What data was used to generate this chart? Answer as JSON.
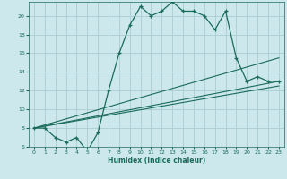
{
  "xlabel": "Humidex (Indice chaleur)",
  "bg_color": "#cce8ec",
  "grid_color": "#aaccd4",
  "line_color": "#1a6b5a",
  "xlim": [
    -0.5,
    23.5
  ],
  "ylim": [
    6,
    21.5
  ],
  "yticks": [
    6,
    8,
    10,
    12,
    14,
    16,
    18,
    20
  ],
  "xticks": [
    0,
    1,
    2,
    3,
    4,
    5,
    6,
    7,
    8,
    9,
    10,
    11,
    12,
    13,
    14,
    15,
    16,
    17,
    18,
    19,
    20,
    21,
    22,
    23
  ],
  "main_x": [
    0,
    1,
    2,
    3,
    4,
    5,
    6,
    7,
    8,
    9,
    10,
    11,
    12,
    13,
    14,
    15,
    16,
    17,
    18,
    19,
    20,
    21,
    22,
    23
  ],
  "main_y": [
    8,
    8,
    7,
    6.5,
    7,
    5.5,
    7.5,
    12,
    16,
    19,
    21,
    20,
    20.5,
    21.5,
    20.5,
    20.5,
    20,
    18.5,
    20.5,
    15.5,
    13,
    13.5,
    13,
    13
  ],
  "line1_x": [
    0,
    23
  ],
  "line1_y": [
    8,
    15.5
  ],
  "line2_x": [
    0,
    23
  ],
  "line2_y": [
    8,
    13
  ],
  "line3_x": [
    0,
    23
  ],
  "line3_y": [
    8,
    12.5
  ]
}
